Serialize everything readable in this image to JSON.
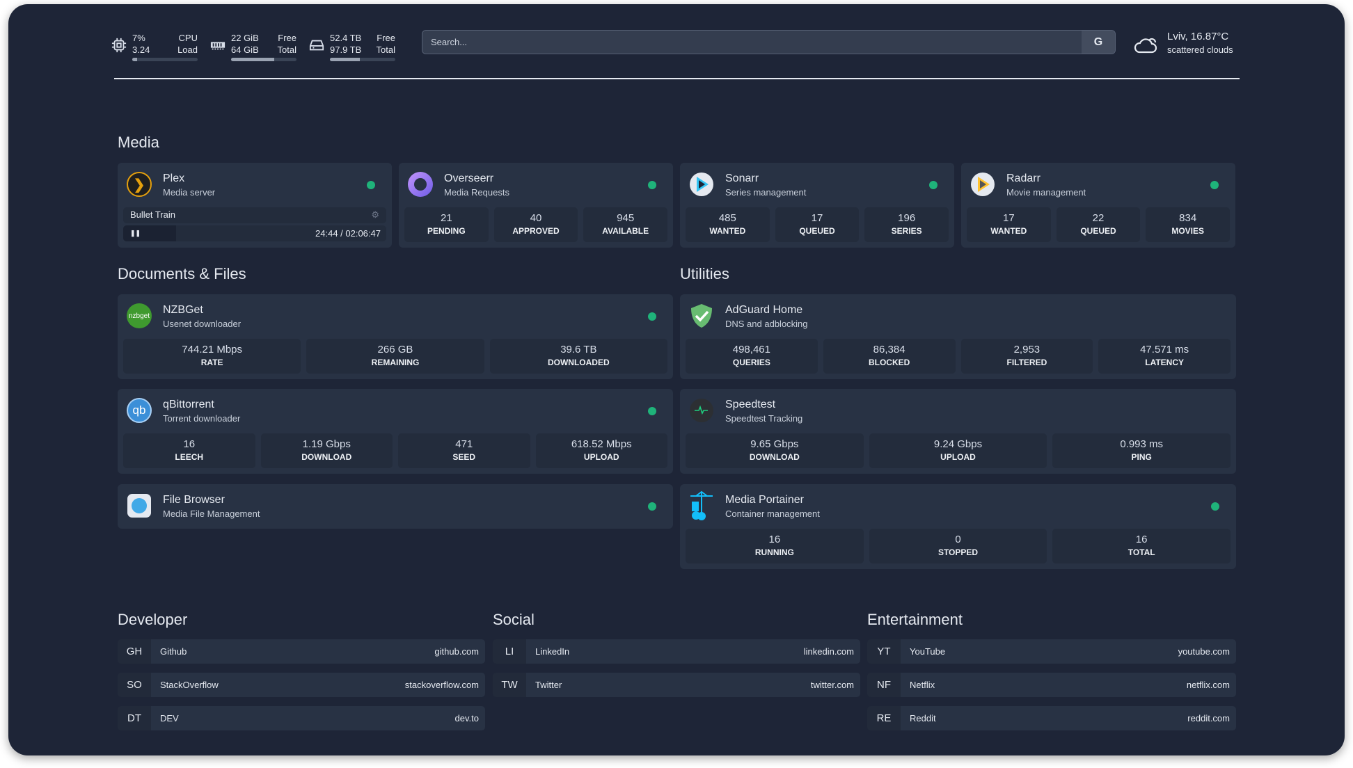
{
  "resources": {
    "cpu": {
      "icon": "cpu-icon",
      "value1": "7%",
      "value2": "3.24",
      "label1": "CPU",
      "label2": "Load",
      "percent": 7
    },
    "memory": {
      "icon": "memory-icon",
      "value1": "22 GiB",
      "value2": "64 GiB",
      "label1": "Free",
      "label2": "Total",
      "percent": 66
    },
    "disk": {
      "icon": "disk-icon",
      "value1": "52.4 TB",
      "value2": "97.9 TB",
      "label1": "Free",
      "label2": "Total",
      "percent": 46
    }
  },
  "search": {
    "placeholder": "Search...",
    "provider_label": "G"
  },
  "weather": {
    "icon": "cloud-icon",
    "location_temp": "Lviv, 16.87°C",
    "condition": "scattered clouds"
  },
  "groups": {
    "media": "Media",
    "docs": "Documents & Files",
    "utilities": "Utilities",
    "developer": "Developer",
    "social": "Social",
    "entertainment": "Entertainment"
  },
  "media": [
    {
      "name": "Plex",
      "desc": "Media server",
      "icon": "plex-icon",
      "status": "online",
      "now_playing": {
        "title": "Bullet Train",
        "time": "24:44 / 02:06:47",
        "progress": 0.2
      }
    },
    {
      "name": "Overseerr",
      "desc": "Media Requests",
      "icon": "overseerr-icon",
      "status": "online",
      "stats": [
        {
          "v": "21",
          "l": "PENDING"
        },
        {
          "v": "40",
          "l": "APPROVED"
        },
        {
          "v": "945",
          "l": "AVAILABLE"
        }
      ]
    },
    {
      "name": "Sonarr",
      "desc": "Series management",
      "icon": "sonarr-icon",
      "status": "online",
      "stats": [
        {
          "v": "485",
          "l": "WANTED"
        },
        {
          "v": "17",
          "l": "QUEUED"
        },
        {
          "v": "196",
          "l": "SERIES"
        }
      ]
    },
    {
      "name": "Radarr",
      "desc": "Movie management",
      "icon": "radarr-icon",
      "status": "online",
      "stats": [
        {
          "v": "17",
          "l": "WANTED"
        },
        {
          "v": "22",
          "l": "QUEUED"
        },
        {
          "v": "834",
          "l": "MOVIES"
        }
      ]
    }
  ],
  "docs": [
    {
      "name": "NZBGet",
      "desc": "Usenet downloader",
      "icon": "nzbget-icon",
      "status": "online",
      "stats": [
        {
          "v": "744.21 Mbps",
          "l": "RATE"
        },
        {
          "v": "266 GB",
          "l": "REMAINING"
        },
        {
          "v": "39.6 TB",
          "l": "DOWNLOADED"
        }
      ]
    },
    {
      "name": "qBittorrent",
      "desc": "Torrent downloader",
      "icon": "qbittorrent-icon",
      "status": "online",
      "stats": [
        {
          "v": "16",
          "l": "LEECH"
        },
        {
          "v": "1.19 Gbps",
          "l": "DOWNLOAD"
        },
        {
          "v": "471",
          "l": "SEED"
        },
        {
          "v": "618.52 Mbps",
          "l": "UPLOAD"
        }
      ]
    },
    {
      "name": "File Browser",
      "desc": "Media File Management",
      "icon": "filebrowser-icon",
      "status": "online"
    }
  ],
  "utilities": [
    {
      "name": "AdGuard Home",
      "desc": "DNS and adblocking",
      "icon": "adguard-icon",
      "stats": [
        {
          "v": "498,461",
          "l": "QUERIES"
        },
        {
          "v": "86,384",
          "l": "BLOCKED"
        },
        {
          "v": "2,953",
          "l": "FILTERED"
        },
        {
          "v": "47.571 ms",
          "l": "LATENCY"
        }
      ]
    },
    {
      "name": "Speedtest",
      "desc": "Speedtest Tracking",
      "icon": "speedtest-icon",
      "stats": [
        {
          "v": "9.65 Gbps",
          "l": "DOWNLOAD"
        },
        {
          "v": "9.24 Gbps",
          "l": "UPLOAD"
        },
        {
          "v": "0.993 ms",
          "l": "PING"
        }
      ]
    },
    {
      "name": "Media Portainer",
      "desc": "Container management",
      "icon": "portainer-icon",
      "status": "online",
      "stats": [
        {
          "v": "16",
          "l": "RUNNING"
        },
        {
          "v": "0",
          "l": "STOPPED"
        },
        {
          "v": "16",
          "l": "TOTAL"
        }
      ]
    }
  ],
  "bookmarks": {
    "developer": [
      {
        "abbr": "GH",
        "name": "Github",
        "url": "github.com"
      },
      {
        "abbr": "SO",
        "name": "StackOverflow",
        "url": "stackoverflow.com"
      },
      {
        "abbr": "DT",
        "name": "DEV",
        "url": "dev.to"
      }
    ],
    "social": [
      {
        "abbr": "LI",
        "name": "LinkedIn",
        "url": "linkedin.com"
      },
      {
        "abbr": "TW",
        "name": "Twitter",
        "url": "twitter.com"
      }
    ],
    "entertainment": [
      {
        "abbr": "YT",
        "name": "YouTube",
        "url": "youtube.com"
      },
      {
        "abbr": "NF",
        "name": "Netflix",
        "url": "netflix.com"
      },
      {
        "abbr": "RE",
        "name": "Reddit",
        "url": "reddit.com"
      }
    ]
  },
  "colors": {
    "background": "#1e2537",
    "card": "#283244",
    "status_online": "#1fb37a"
  }
}
